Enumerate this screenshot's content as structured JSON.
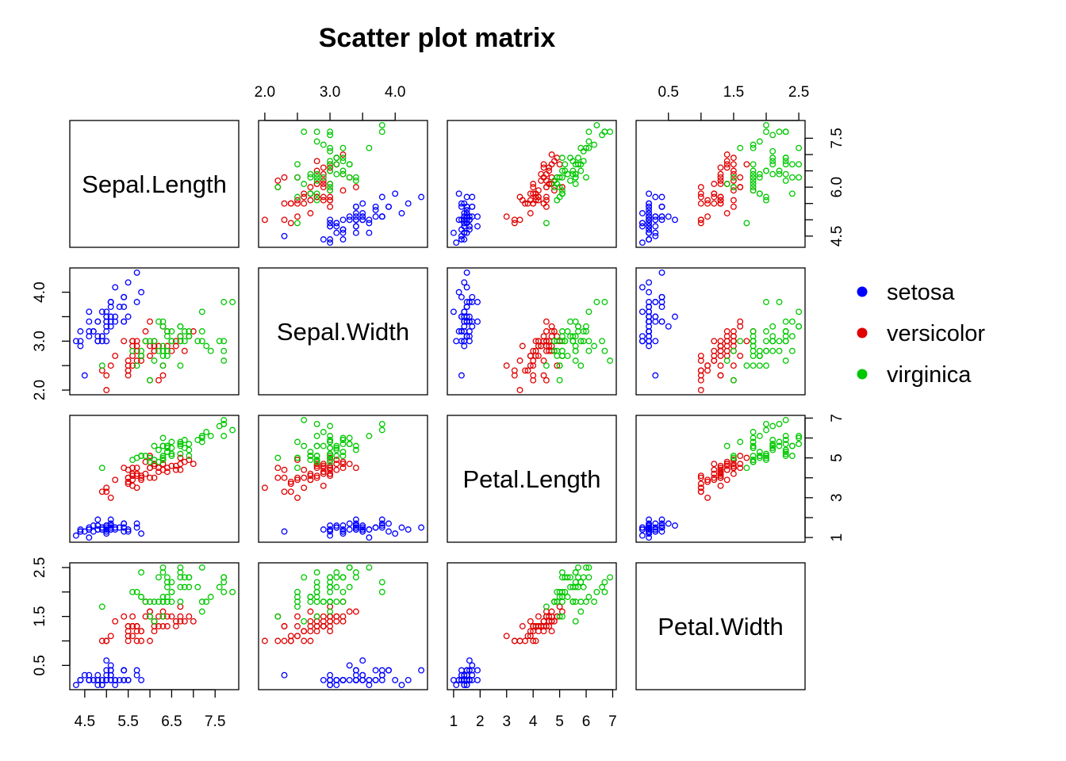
{
  "chart_data": {
    "type": "scatter",
    "title": "Scatter plot matrix",
    "variables": [
      "Sepal.Length",
      "Sepal.Width",
      "Petal.Length",
      "Petal.Width"
    ],
    "ranges": [
      [
        4.3,
        7.9
      ],
      [
        2.0,
        4.4
      ],
      [
        1.0,
        6.9
      ],
      [
        0.1,
        2.5
      ]
    ],
    "axes": [
      {
        "side": "bottom",
        "panel": 0,
        "variable": 0,
        "ticks": [
          4.5,
          5.0,
          5.5,
          6.0,
          6.5,
          7.0,
          7.5
        ],
        "labels": [
          "4.5",
          "5.5",
          "6.5",
          "7.5"
        ],
        "label_values": [
          4.5,
          5.5,
          6.5,
          7.5
        ]
      },
      {
        "side": "bottom",
        "panel": 2,
        "variable": 2,
        "ticks": [
          1,
          2,
          3,
          4,
          5,
          6,
          7
        ],
        "labels": [
          "1",
          "2",
          "3",
          "4",
          "5",
          "6",
          "7"
        ],
        "label_values": [
          1,
          2,
          3,
          4,
          5,
          6,
          7
        ]
      },
      {
        "side": "top",
        "panel": 1,
        "variable": 1,
        "ticks": [
          2.0,
          2.5,
          3.0,
          3.5,
          4.0
        ],
        "labels": [
          "2.0",
          "3.0",
          "4.0"
        ],
        "label_values": [
          2.0,
          3.0,
          4.0
        ]
      },
      {
        "side": "top",
        "panel": 3,
        "variable": 3,
        "ticks": [
          0.5,
          1.0,
          1.5,
          2.0,
          2.5
        ],
        "labels": [
          "0.5",
          "1.5",
          "2.5"
        ],
        "label_values": [
          0.5,
          1.5,
          2.5
        ]
      },
      {
        "side": "left",
        "panel": 1,
        "variable": 1,
        "ticks": [
          2.0,
          2.5,
          3.0,
          3.5,
          4.0
        ],
        "labels": [
          "2.0",
          "3.0",
          "4.0"
        ],
        "label_values": [
          2.0,
          3.0,
          4.0
        ]
      },
      {
        "side": "left",
        "panel": 3,
        "variable": 3,
        "ticks": [
          0.5,
          1.0,
          1.5,
          2.0,
          2.5
        ],
        "labels": [
          "0.5",
          "1.5",
          "2.5"
        ],
        "label_values": [
          0.5,
          1.5,
          2.5
        ]
      },
      {
        "side": "right",
        "panel": 0,
        "variable": 0,
        "ticks": [
          4.5,
          5.0,
          5.5,
          6.0,
          6.5,
          7.0,
          7.5
        ],
        "labels": [
          "4.5",
          "6.0",
          "7.5"
        ],
        "label_values": [
          4.5,
          6.0,
          7.5
        ]
      },
      {
        "side": "right",
        "panel": 2,
        "variable": 2,
        "ticks": [
          1,
          2,
          3,
          4,
          5,
          6,
          7
        ],
        "labels": [
          "1",
          "3",
          "5",
          "7"
        ],
        "label_values": [
          1,
          3,
          5,
          7
        ]
      }
    ],
    "legend": {
      "position": "right",
      "entries": [
        "setosa",
        "versicolor",
        "virginica"
      ]
    },
    "series": [
      {
        "name": "setosa",
        "color": "#0000ff",
        "points": [
          [
            5.1,
            3.5,
            1.4,
            0.2
          ],
          [
            4.9,
            3.0,
            1.4,
            0.2
          ],
          [
            4.7,
            3.2,
            1.3,
            0.2
          ],
          [
            4.6,
            3.1,
            1.5,
            0.2
          ],
          [
            5.0,
            3.6,
            1.4,
            0.2
          ],
          [
            5.4,
            3.9,
            1.7,
            0.4
          ],
          [
            4.6,
            3.4,
            1.4,
            0.3
          ],
          [
            5.0,
            3.4,
            1.5,
            0.2
          ],
          [
            4.4,
            2.9,
            1.4,
            0.2
          ],
          [
            4.9,
            3.1,
            1.5,
            0.1
          ],
          [
            5.4,
            3.7,
            1.5,
            0.2
          ],
          [
            4.8,
            3.4,
            1.6,
            0.2
          ],
          [
            4.8,
            3.0,
            1.4,
            0.1
          ],
          [
            4.3,
            3.0,
            1.1,
            0.1
          ],
          [
            5.8,
            4.0,
            1.2,
            0.2
          ],
          [
            5.7,
            4.4,
            1.5,
            0.4
          ],
          [
            5.4,
            3.9,
            1.3,
            0.4
          ],
          [
            5.1,
            3.5,
            1.4,
            0.3
          ],
          [
            5.7,
            3.8,
            1.7,
            0.3
          ],
          [
            5.1,
            3.8,
            1.5,
            0.3
          ],
          [
            5.4,
            3.4,
            1.7,
            0.2
          ],
          [
            5.1,
            3.7,
            1.5,
            0.4
          ],
          [
            4.6,
            3.6,
            1.0,
            0.2
          ],
          [
            5.1,
            3.3,
            1.7,
            0.5
          ],
          [
            4.8,
            3.4,
            1.9,
            0.2
          ],
          [
            5.0,
            3.0,
            1.6,
            0.2
          ],
          [
            5.0,
            3.4,
            1.6,
            0.4
          ],
          [
            5.2,
            3.5,
            1.5,
            0.2
          ],
          [
            5.2,
            3.4,
            1.4,
            0.2
          ],
          [
            4.7,
            3.2,
            1.6,
            0.2
          ],
          [
            4.8,
            3.1,
            1.6,
            0.2
          ],
          [
            5.4,
            3.4,
            1.5,
            0.4
          ],
          [
            5.2,
            4.1,
            1.5,
            0.1
          ],
          [
            5.5,
            4.2,
            1.4,
            0.2
          ],
          [
            4.9,
            3.1,
            1.5,
            0.2
          ],
          [
            5.0,
            3.2,
            1.2,
            0.2
          ],
          [
            5.5,
            3.5,
            1.3,
            0.2
          ],
          [
            4.9,
            3.6,
            1.4,
            0.1
          ],
          [
            4.4,
            3.0,
            1.3,
            0.2
          ],
          [
            5.1,
            3.4,
            1.5,
            0.2
          ],
          [
            5.0,
            3.5,
            1.3,
            0.3
          ],
          [
            4.5,
            2.3,
            1.3,
            0.3
          ],
          [
            4.4,
            3.2,
            1.3,
            0.2
          ],
          [
            5.0,
            3.5,
            1.6,
            0.6
          ],
          [
            5.1,
            3.8,
            1.9,
            0.4
          ],
          [
            4.8,
            3.0,
            1.4,
            0.3
          ],
          [
            5.1,
            3.8,
            1.6,
            0.2
          ],
          [
            4.6,
            3.2,
            1.4,
            0.2
          ],
          [
            5.3,
            3.7,
            1.5,
            0.2
          ],
          [
            5.0,
            3.3,
            1.4,
            0.2
          ]
        ]
      },
      {
        "name": "versicolor",
        "color": "#e00000",
        "points": [
          [
            7.0,
            3.2,
            4.7,
            1.4
          ],
          [
            6.4,
            3.2,
            4.5,
            1.5
          ],
          [
            6.9,
            3.1,
            4.9,
            1.5
          ],
          [
            5.5,
            2.3,
            4.0,
            1.3
          ],
          [
            6.5,
            2.8,
            4.6,
            1.5
          ],
          [
            5.7,
            2.8,
            4.5,
            1.3
          ],
          [
            6.3,
            3.3,
            4.7,
            1.6
          ],
          [
            4.9,
            2.4,
            3.3,
            1.0
          ],
          [
            6.6,
            2.9,
            4.6,
            1.3
          ],
          [
            5.2,
            2.7,
            3.9,
            1.4
          ],
          [
            5.0,
            2.0,
            3.5,
            1.0
          ],
          [
            5.9,
            3.0,
            4.2,
            1.5
          ],
          [
            6.0,
            2.2,
            4.0,
            1.0
          ],
          [
            6.1,
            2.9,
            4.7,
            1.4
          ],
          [
            5.6,
            2.9,
            3.6,
            1.3
          ],
          [
            6.7,
            3.1,
            4.4,
            1.4
          ],
          [
            5.6,
            3.0,
            4.5,
            1.5
          ],
          [
            5.8,
            2.7,
            4.1,
            1.0
          ],
          [
            6.2,
            2.2,
            4.5,
            1.5
          ],
          [
            5.6,
            2.5,
            3.9,
            1.1
          ],
          [
            5.9,
            3.2,
            4.8,
            1.8
          ],
          [
            6.1,
            2.8,
            4.0,
            1.3
          ],
          [
            6.3,
            2.5,
            4.9,
            1.5
          ],
          [
            6.1,
            2.8,
            4.7,
            1.2
          ],
          [
            6.4,
            2.9,
            4.3,
            1.3
          ],
          [
            6.6,
            3.0,
            4.4,
            1.4
          ],
          [
            6.8,
            2.8,
            4.8,
            1.4
          ],
          [
            6.7,
            3.0,
            5.0,
            1.7
          ],
          [
            6.0,
            2.9,
            4.5,
            1.5
          ],
          [
            5.7,
            2.6,
            3.5,
            1.0
          ],
          [
            5.5,
            2.4,
            3.8,
            1.1
          ],
          [
            5.5,
            2.4,
            3.7,
            1.0
          ],
          [
            5.8,
            2.7,
            3.9,
            1.2
          ],
          [
            6.0,
            2.7,
            5.1,
            1.6
          ],
          [
            5.4,
            3.0,
            4.5,
            1.5
          ],
          [
            6.0,
            3.4,
            4.5,
            1.6
          ],
          [
            6.7,
            3.1,
            4.7,
            1.5
          ],
          [
            6.3,
            2.3,
            4.4,
            1.3
          ],
          [
            5.6,
            3.0,
            4.1,
            1.3
          ],
          [
            5.5,
            2.5,
            4.0,
            1.3
          ],
          [
            5.5,
            2.6,
            4.4,
            1.2
          ],
          [
            6.1,
            3.0,
            4.6,
            1.4
          ],
          [
            5.8,
            2.6,
            4.0,
            1.2
          ],
          [
            5.0,
            2.3,
            3.3,
            1.0
          ],
          [
            5.6,
            2.7,
            4.2,
            1.3
          ],
          [
            5.7,
            3.0,
            4.2,
            1.2
          ],
          [
            5.7,
            2.9,
            4.2,
            1.3
          ],
          [
            6.2,
            2.9,
            4.3,
            1.3
          ],
          [
            5.1,
            2.5,
            3.0,
            1.1
          ],
          [
            5.7,
            2.8,
            4.1,
            1.3
          ]
        ]
      },
      {
        "name": "virginica",
        "color": "#00c800",
        "points": [
          [
            6.3,
            3.3,
            6.0,
            2.5
          ],
          [
            5.8,
            2.7,
            5.1,
            1.9
          ],
          [
            7.1,
            3.0,
            5.9,
            2.1
          ],
          [
            6.3,
            2.9,
            5.6,
            1.8
          ],
          [
            6.5,
            3.0,
            5.8,
            2.2
          ],
          [
            7.6,
            3.0,
            6.6,
            2.1
          ],
          [
            4.9,
            2.5,
            4.5,
            1.7
          ],
          [
            7.3,
            2.9,
            6.3,
            1.8
          ],
          [
            6.7,
            2.5,
            5.8,
            1.8
          ],
          [
            7.2,
            3.6,
            6.1,
            2.5
          ],
          [
            6.5,
            3.2,
            5.1,
            2.0
          ],
          [
            6.4,
            2.7,
            5.3,
            1.9
          ],
          [
            6.8,
            3.0,
            5.5,
            2.1
          ],
          [
            5.7,
            2.5,
            5.0,
            2.0
          ],
          [
            5.8,
            2.8,
            5.1,
            2.4
          ],
          [
            6.4,
            3.2,
            5.3,
            2.3
          ],
          [
            6.5,
            3.0,
            5.5,
            1.8
          ],
          [
            7.7,
            3.8,
            6.7,
            2.2
          ],
          [
            7.7,
            2.6,
            6.9,
            2.3
          ],
          [
            6.0,
            2.2,
            5.0,
            1.5
          ],
          [
            6.9,
            3.2,
            5.7,
            2.3
          ],
          [
            5.6,
            2.8,
            4.9,
            2.0
          ],
          [
            7.7,
            2.8,
            6.7,
            2.0
          ],
          [
            6.3,
            2.7,
            4.9,
            1.8
          ],
          [
            6.7,
            3.3,
            5.7,
            2.1
          ],
          [
            7.2,
            3.2,
            6.0,
            1.8
          ],
          [
            6.2,
            2.8,
            4.8,
            1.8
          ],
          [
            6.1,
            3.0,
            4.9,
            1.8
          ],
          [
            6.4,
            2.8,
            5.6,
            2.1
          ],
          [
            7.2,
            3.0,
            5.8,
            1.6
          ],
          [
            7.4,
            2.8,
            6.1,
            1.9
          ],
          [
            7.9,
            3.8,
            6.4,
            2.0
          ],
          [
            6.4,
            2.8,
            5.6,
            2.2
          ],
          [
            6.3,
            2.8,
            5.1,
            1.5
          ],
          [
            6.1,
            2.6,
            5.6,
            1.4
          ],
          [
            7.7,
            3.0,
            6.1,
            2.3
          ],
          [
            6.3,
            3.4,
            5.6,
            2.4
          ],
          [
            6.4,
            3.1,
            5.5,
            1.8
          ],
          [
            6.0,
            3.0,
            4.8,
            1.8
          ],
          [
            6.9,
            3.1,
            5.4,
            2.1
          ],
          [
            6.7,
            3.1,
            5.6,
            2.4
          ],
          [
            6.9,
            3.1,
            5.1,
            2.3
          ],
          [
            5.8,
            2.7,
            5.1,
            1.9
          ],
          [
            6.8,
            3.2,
            5.9,
            2.3
          ],
          [
            6.7,
            3.3,
            5.7,
            2.5
          ],
          [
            6.7,
            3.0,
            5.2,
            2.3
          ],
          [
            6.3,
            2.5,
            5.0,
            1.9
          ],
          [
            6.5,
            3.0,
            5.2,
            2.0
          ],
          [
            6.2,
            3.4,
            5.4,
            2.3
          ],
          [
            5.9,
            3.0,
            5.1,
            1.8
          ]
        ]
      }
    ]
  }
}
